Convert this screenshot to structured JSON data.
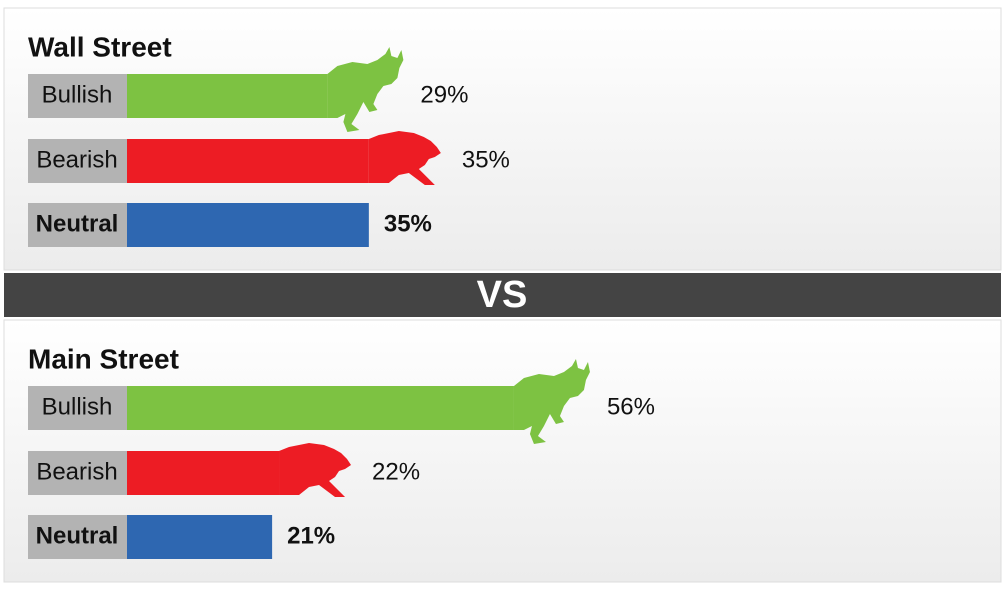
{
  "chart_data": [
    {
      "type": "bar",
      "title": "Wall Street",
      "categories": [
        "Bullish",
        "Bearish",
        "Neutral"
      ],
      "values": [
        29,
        35,
        35
      ],
      "value_labels": [
        "29%",
        "35%",
        "35%"
      ],
      "colors": [
        "#7dc242",
        "#ed1c24",
        "#2e67b1"
      ],
      "xlim": [
        0,
        100
      ]
    },
    {
      "type": "bar",
      "title": "Main Street",
      "categories": [
        "Bullish",
        "Bearish",
        "Neutral"
      ],
      "values": [
        56,
        22,
        21
      ],
      "value_labels": [
        "56%",
        "22%",
        "21%"
      ],
      "colors": [
        "#7dc242",
        "#ed1c24",
        "#2e67b1"
      ],
      "xlim": [
        0,
        100
      ]
    }
  ],
  "divider": "VS"
}
